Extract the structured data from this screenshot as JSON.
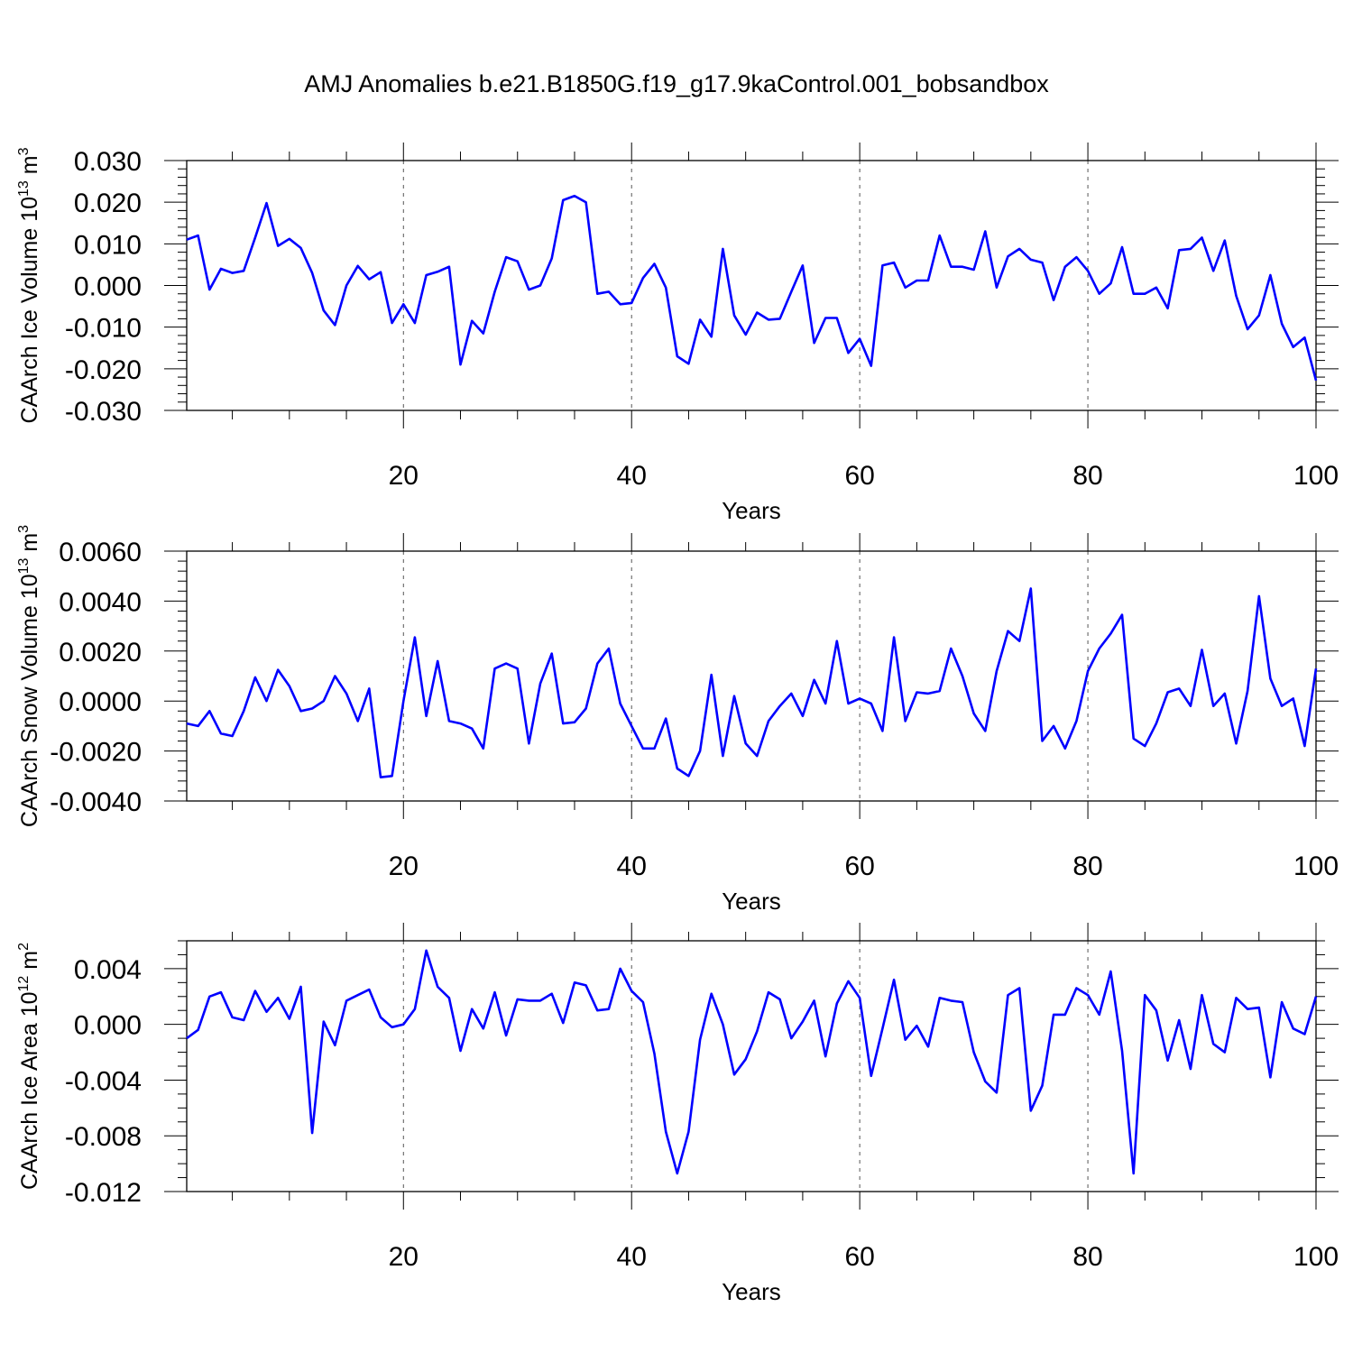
{
  "title": "AMJ Anomalies b.e21.B1850G.f19_g17.9kaControl.001_bobsandbox",
  "chart_data": [
    {
      "type": "line",
      "ylabel": "CAArch Ice Volume",
      "ylabel_exp": "13",
      "ylabel_unit_exp": "3",
      "xlabel": "Years",
      "xlim": [
        1,
        100
      ],
      "ylim": [
        -0.03,
        0.03
      ],
      "x_ticks": [
        20,
        40,
        60,
        80,
        100
      ],
      "x_tick_labels": [
        "20",
        "40",
        "60",
        "80",
        "100"
      ],
      "y_ticks": [
        -0.03,
        -0.02,
        -0.01,
        0.0,
        0.01,
        0.02,
        0.03
      ],
      "y_tick_labels": [
        "-0.030",
        "-0.020",
        "-0.010",
        "0.000",
        "0.010",
        "0.020",
        "0.030"
      ],
      "y_minor_step": 0.002,
      "x_minor_step": 5,
      "vertical_gridlines": [
        20,
        40,
        60,
        80
      ],
      "line_color": "#0000ff",
      "series": [
        {
          "x_start": 1,
          "values": [
            0.011,
            0.012,
            -0.001,
            0.004,
            0.003,
            0.0035,
            0.0115,
            0.0198,
            0.0095,
            0.0112,
            0.009,
            0.003,
            -0.006,
            -0.0095,
            0.0,
            0.0047,
            0.0015,
            0.0032,
            -0.009,
            -0.0045,
            -0.009,
            0.0025,
            0.0033,
            0.0045,
            -0.019,
            -0.0085,
            -0.0115,
            -0.0015,
            0.0068,
            0.0058,
            -0.001,
            0.0,
            0.0065,
            0.0205,
            0.0215,
            0.02,
            -0.002,
            -0.0015,
            -0.0045,
            -0.0042,
            0.0018,
            0.0052,
            -0.0005,
            -0.017,
            -0.0188,
            -0.0082,
            -0.0123,
            0.0088,
            -0.0072,
            -0.0118,
            -0.0065,
            -0.0082,
            -0.008,
            -0.0015,
            0.0048,
            -0.0138,
            -0.0078,
            -0.0078,
            -0.0162,
            -0.0128,
            -0.0193,
            0.0048,
            0.0055,
            -0.0005,
            0.0012,
            0.0012,
            0.012,
            0.0045,
            0.0045,
            0.0038,
            0.013,
            -0.0005,
            0.007,
            0.0088,
            0.0062,
            0.0055,
            -0.0035,
            0.0045,
            0.0068,
            0.0035,
            -0.002,
            0.0005,
            0.0092,
            -0.002,
            -0.002,
            -0.0005,
            -0.0055,
            0.0085,
            0.0088,
            0.0115,
            0.0035,
            0.0108,
            -0.0025,
            -0.0105,
            -0.0072,
            0.0025,
            -0.0092,
            -0.0148,
            -0.0125,
            -0.0228
          ]
        }
      ]
    },
    {
      "type": "line",
      "ylabel": "CAArch Snow Volume",
      "ylabel_exp": "13",
      "ylabel_unit_exp": "3",
      "xlabel": "Years",
      "xlim": [
        1,
        100
      ],
      "ylim": [
        -0.004,
        0.006
      ],
      "x_ticks": [
        20,
        40,
        60,
        80,
        100
      ],
      "x_tick_labels": [
        "20",
        "40",
        "60",
        "80",
        "100"
      ],
      "y_ticks": [
        -0.004,
        -0.002,
        0.0,
        0.002,
        0.004,
        0.006
      ],
      "y_tick_labels": [
        "-0.0040",
        "-0.0020",
        "0.0000",
        "0.0020",
        "0.0040",
        "0.0060"
      ],
      "y_minor_step": 0.0004,
      "x_minor_step": 5,
      "vertical_gridlines": [
        20,
        40,
        60,
        80
      ],
      "line_color": "#0000ff",
      "series": [
        {
          "x_start": 1,
          "values": [
            -0.0009,
            -0.001,
            -0.0004,
            -0.0013,
            -0.0014,
            -0.0004,
            0.00095,
            0.0,
            0.00125,
            0.0006,
            -0.0004,
            -0.0003,
            0.0,
            0.001,
            0.0003,
            -0.0008,
            0.0005,
            -0.00305,
            -0.003,
            0.0,
            0.00255,
            -0.0006,
            0.0016,
            -0.0008,
            -0.0009,
            -0.0011,
            -0.0019,
            0.0013,
            0.0015,
            0.0013,
            -0.0017,
            0.0007,
            0.0019,
            -0.0009,
            -0.00085,
            -0.0003,
            0.0015,
            0.0021,
            -0.0001,
            -0.001,
            -0.0019,
            -0.0019,
            -0.0007,
            -0.0027,
            -0.003,
            -0.002,
            0.00105,
            -0.0022,
            0.0002,
            -0.0017,
            -0.0022,
            -0.0008,
            -0.0002,
            0.0003,
            -0.0006,
            0.00085,
            -0.0001,
            0.0024,
            -0.0001,
            0.0001,
            -0.0001,
            -0.0012,
            0.00255,
            -0.0008,
            0.00035,
            0.0003,
            0.0004,
            0.0021,
            0.001,
            -0.0005,
            -0.0012,
            0.0012,
            0.0028,
            0.0024,
            0.0045,
            -0.0016,
            -0.001,
            -0.0019,
            -0.0008,
            0.0012,
            0.0021,
            0.0027,
            0.00345,
            -0.0015,
            -0.0018,
            -0.0009,
            0.00035,
            0.0005,
            -0.0002,
            0.00205,
            -0.0002,
            0.0003,
            -0.0017,
            0.0004,
            0.0042,
            0.0009,
            -0.0002,
            0.0001,
            -0.0018,
            0.0013
          ]
        }
      ]
    },
    {
      "type": "line",
      "ylabel": "CAArch Ice Area",
      "ylabel_exp": "12",
      "ylabel_unit_exp": "2",
      "xlabel": "Years",
      "xlim": [
        1,
        100
      ],
      "ylim": [
        -0.012,
        0.006
      ],
      "x_ticks": [
        20,
        40,
        60,
        80,
        100
      ],
      "x_tick_labels": [
        "20",
        "40",
        "60",
        "80",
        "100"
      ],
      "y_ticks": [
        -0.012,
        -0.008,
        -0.004,
        0.0,
        0.004
      ],
      "y_tick_labels": [
        "-0.012",
        "-0.008",
        "-0.004",
        "0.000",
        "0.004"
      ],
      "y_minor_step": 0.001,
      "x_minor_step": 5,
      "vertical_gridlines": [
        20,
        40,
        60,
        80
      ],
      "line_color": "#0000ff",
      "series": [
        {
          "x_start": 1,
          "values": [
            -0.001,
            -0.0004,
            0.002,
            0.0023,
            0.0005,
            0.0003,
            0.0024,
            0.0009,
            0.0019,
            0.0004,
            0.0027,
            -0.0078,
            0.0002,
            -0.0015,
            0.0017,
            0.0021,
            0.0025,
            0.0005,
            -0.0002,
            0.0,
            0.0011,
            0.0053,
            0.0027,
            0.0019,
            -0.0019,
            0.0011,
            -0.0003,
            0.0023,
            -0.0008,
            0.0018,
            0.0017,
            0.0017,
            0.0022,
            0.0001,
            0.003,
            0.0028,
            0.001,
            0.0011,
            0.004,
            0.0024,
            0.0016,
            -0.0021,
            -0.0077,
            -0.0107,
            -0.0077,
            -0.0011,
            0.0022,
            0.0,
            -0.0036,
            -0.0025,
            -0.0005,
            0.0023,
            0.0018,
            -0.001,
            0.0002,
            0.0017,
            -0.0023,
            0.0015,
            0.0031,
            0.0019,
            -0.0037,
            -0.0003,
            0.0032,
            -0.0011,
            -0.0001,
            -0.0016,
            0.0019,
            0.0017,
            0.0016,
            -0.002,
            -0.0041,
            -0.0049,
            0.0021,
            0.0026,
            -0.0062,
            -0.0044,
            0.0007,
            0.0007,
            0.0026,
            0.0021,
            0.0007,
            0.0038,
            -0.0019,
            -0.0107,
            0.0021,
            0.001,
            -0.0026,
            0.0003,
            -0.0032,
            0.0021,
            -0.0014,
            -0.002,
            0.0019,
            0.0011,
            0.0012,
            -0.0038,
            0.0016,
            -0.0003,
            -0.0007,
            0.002
          ]
        }
      ]
    }
  ]
}
